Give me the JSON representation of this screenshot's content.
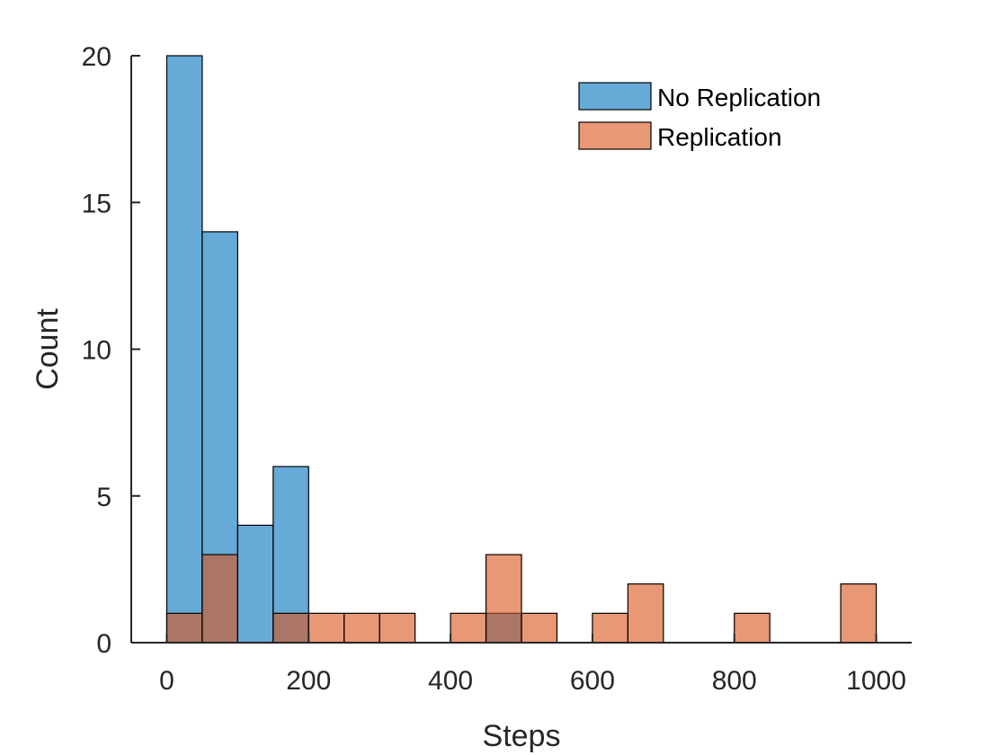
{
  "chart_data": {
    "type": "bar",
    "subtype": "overlaid-histogram",
    "xlabel": "Steps",
    "ylabel": "Count",
    "xlim": [
      -50,
      1050
    ],
    "ylim": [
      0,
      20
    ],
    "xticks": [
      0,
      200,
      400,
      600,
      800,
      1000
    ],
    "yticks": [
      0,
      5,
      10,
      15,
      20
    ],
    "bin_width": 50,
    "bin_edges": [
      0,
      50,
      100,
      150,
      200,
      250,
      300,
      350,
      400,
      450,
      500,
      550,
      600,
      650,
      700,
      750,
      800,
      850,
      900,
      950,
      1000
    ],
    "grid": false,
    "legend_position": "top-right",
    "series": [
      {
        "name": "No Replication",
        "color": "#0072BD",
        "alpha": 0.6,
        "values": [
          20,
          14,
          4,
          6,
          0,
          0,
          0,
          0,
          0,
          1,
          0,
          0,
          0,
          0,
          0,
          0,
          0,
          0,
          0,
          0
        ]
      },
      {
        "name": "Replication",
        "color": "#D95319",
        "alpha": 0.6,
        "values": [
          1,
          3,
          0,
          1,
          1,
          1,
          1,
          0,
          1,
          3,
          1,
          0,
          1,
          2,
          0,
          0,
          1,
          0,
          0,
          2
        ]
      }
    ]
  }
}
